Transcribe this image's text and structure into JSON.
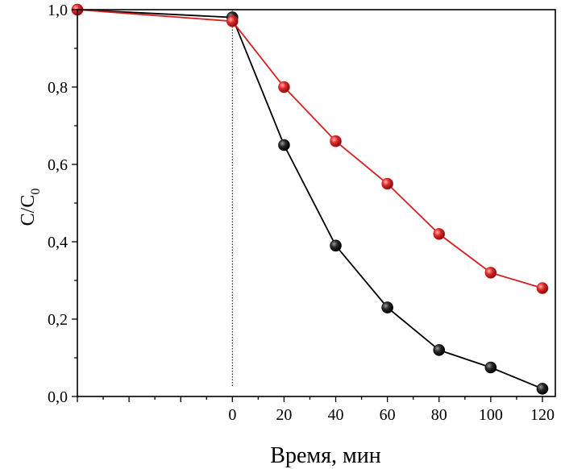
{
  "chart_data": {
    "type": "line",
    "x_ticks": [
      "0",
      "20",
      "40",
      "60",
      "80",
      "100",
      "120"
    ],
    "y_ticks": [
      "0,0",
      "0,2",
      "0,4",
      "0,6",
      "0,8",
      "1,0"
    ],
    "xlabel": "Время, мин",
    "ylabel": "C/C",
    "ylabel_subscript": "0",
    "xlim": [
      -60,
      125
    ],
    "ylim": [
      0,
      1.0
    ],
    "grid": false,
    "reference_line_x": 0,
    "series": [
      {
        "color": "#000000",
        "marker_color": "#1a1a1a",
        "x": [
          -60,
          0,
          20,
          40,
          60,
          80,
          100,
          120
        ],
        "y": [
          1.0,
          0.98,
          0.65,
          0.39,
          0.23,
          0.12,
          0.075,
          0.02
        ]
      },
      {
        "color": "#d62020",
        "marker_color": "#e02a2a",
        "x": [
          -60,
          0,
          20,
          40,
          60,
          80,
          100,
          120
        ],
        "y": [
          1.0,
          0.97,
          0.8,
          0.66,
          0.55,
          0.42,
          0.32,
          0.28
        ]
      }
    ]
  }
}
